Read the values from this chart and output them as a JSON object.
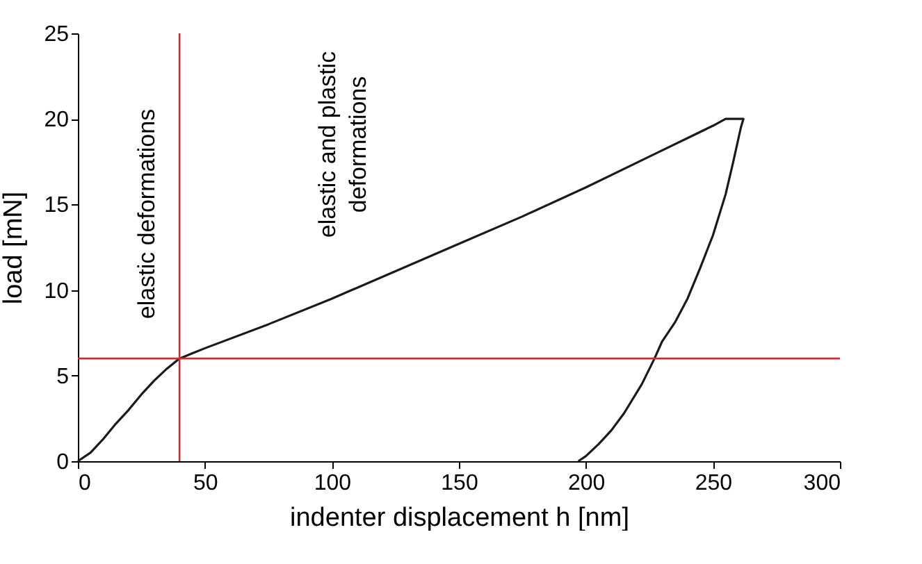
{
  "chart_data": {
    "type": "line",
    "xlabel": "indenter displacement h [nm]",
    "ylabel": "load [mN]",
    "x": [
      0,
      5,
      10,
      15,
      20,
      25,
      30,
      35,
      40,
      45,
      50,
      75,
      100,
      125,
      150,
      175,
      200,
      225,
      250,
      255,
      262,
      261,
      258,
      255,
      250,
      245,
      240,
      235,
      230,
      227,
      222,
      215,
      210,
      205,
      200,
      197
    ],
    "series": [
      {
        "color": "#1a1a1a",
        "values": [
          0,
          0.5,
          1.3,
          2.2,
          3.0,
          3.9,
          4.7,
          5.4,
          6.0,
          6.3,
          6.6,
          8.0,
          9.5,
          11.1,
          12.7,
          14.3,
          16.0,
          17.8,
          19.6,
          20,
          20,
          19.5,
          17.5,
          15.6,
          13.2,
          11.3,
          9.5,
          8.1,
          7.0,
          6.0,
          4.5,
          2.8,
          1.8,
          1.0,
          0.3,
          0
        ]
      }
    ],
    "xlim": [
      0,
      300
    ],
    "xticks": [
      0,
      50,
      100,
      150,
      200,
      250,
      300
    ],
    "ylim": [
      0,
      25
    ],
    "yticks": [
      0,
      5,
      10,
      15,
      20,
      25
    ],
    "grid": false,
    "marker": "none",
    "line_style": "solid",
    "ref_lines": [
      {
        "axis": "x",
        "value": 40,
        "color": "#d42a2f"
      },
      {
        "axis": "y",
        "value": 6,
        "color": "#d42a2f"
      }
    ],
    "annotations": [
      "elastic deformations",
      "elastic and plastic deformations"
    ]
  }
}
